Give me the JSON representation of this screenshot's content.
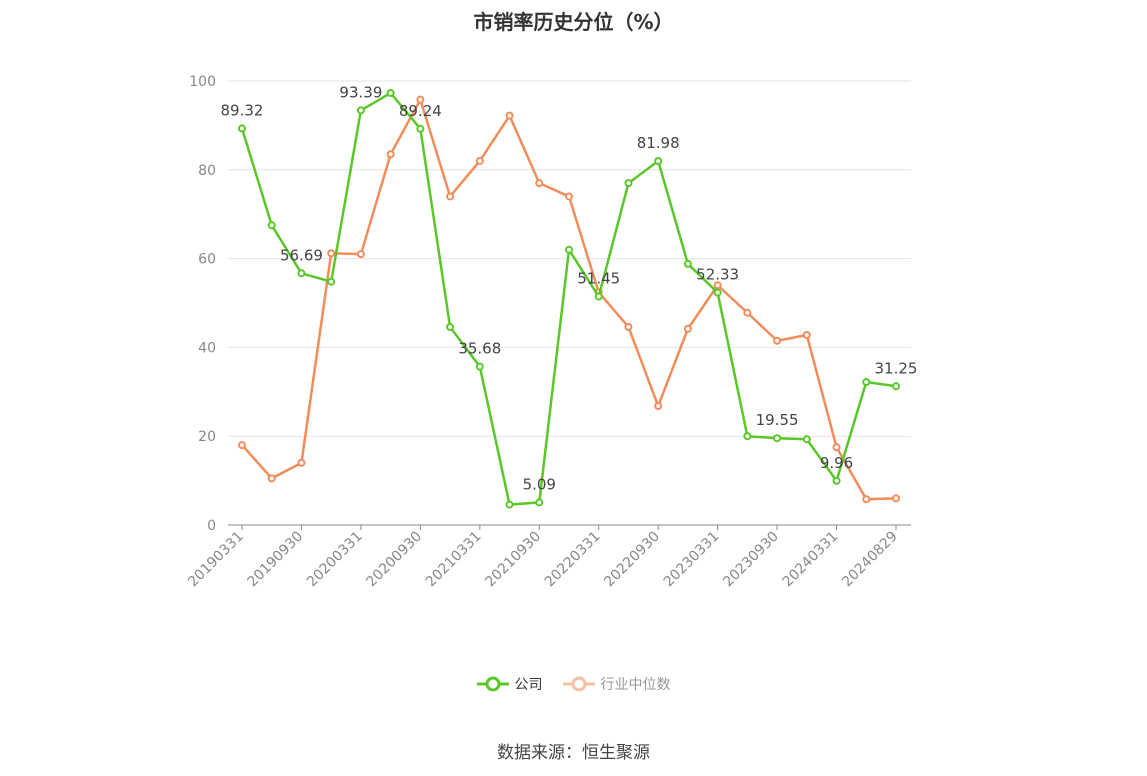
{
  "chart_data": {
    "type": "line",
    "title": "市销率历史分位（%）",
    "ylim": [
      0,
      100
    ],
    "yticks": [
      0,
      20,
      40,
      60,
      80,
      100
    ],
    "grid": true,
    "legend_position": "bottom",
    "xtick_labels": [
      "20190331",
      "20190930",
      "20200331",
      "20200930",
      "20210331",
      "20210930",
      "20220331",
      "20220930",
      "20230331",
      "20230930",
      "20240331",
      "20240829"
    ],
    "x": [
      "20190331",
      "20190630",
      "20190930",
      "20191231",
      "20200331",
      "20200630",
      "20200930",
      "20201231",
      "20210331",
      "20210630",
      "20210930",
      "20211231",
      "20220331",
      "20220630",
      "20220930",
      "20221231",
      "20230331",
      "20230630",
      "20230930",
      "20231231",
      "20240331",
      "20240630",
      "20240829"
    ],
    "series": [
      {
        "name": "公司",
        "color": "#5ac728",
        "values": [
          89.32,
          67.5,
          56.69,
          54.8,
          93.39,
          97.3,
          89.24,
          44.6,
          35.68,
          4.6,
          5.09,
          62.0,
          51.45,
          77.0,
          81.98,
          58.8,
          52.33,
          20.0,
          19.55,
          19.3,
          9.96,
          32.2,
          31.25
        ],
        "labels": {
          "0": "89.32",
          "2": "56.69",
          "4": "93.39",
          "6": "89.24",
          "8": "35.68",
          "10": "5.09",
          "12": "51.45",
          "14": "81.98",
          "16": "52.33",
          "18": "19.55",
          "20": "9.96",
          "22": "31.25"
        }
      },
      {
        "name": "行业中位数",
        "color": "#f28c5a",
        "values": [
          18.0,
          10.5,
          14.0,
          61.2,
          61.0,
          83.5,
          95.8,
          74.0,
          82.0,
          92.2,
          77.0,
          74.0,
          52.4,
          44.6,
          26.8,
          44.2,
          54.0,
          47.8,
          41.5,
          42.8,
          17.5,
          5.8,
          6.0
        ]
      }
    ]
  },
  "legend": {
    "company_label": "公司",
    "industry_label": "行业中位数"
  },
  "source": "数据来源：恒生聚源"
}
